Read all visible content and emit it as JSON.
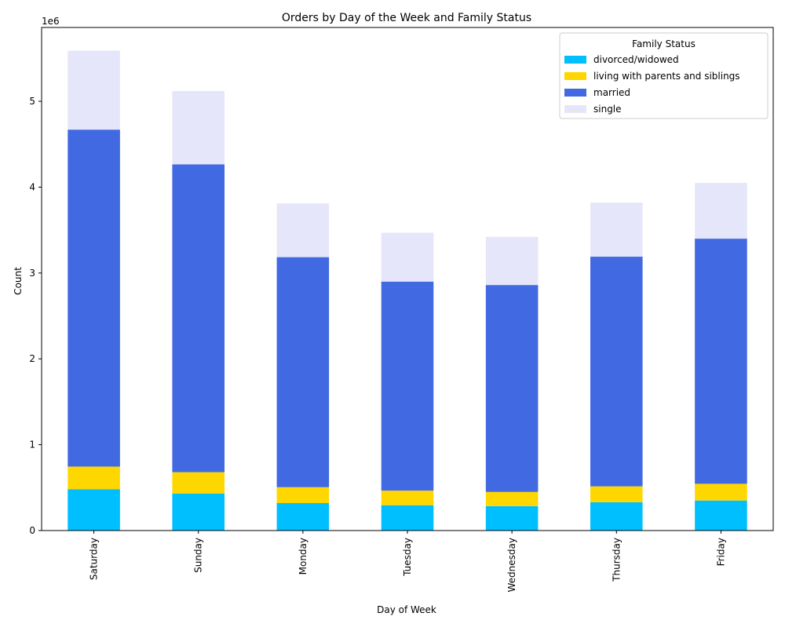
{
  "chart_data": {
    "type": "bar",
    "stacked": true,
    "title": "Orders by Day of the Week and Family Status",
    "xlabel": "Day of Week",
    "ylabel": "Count",
    "y_offset_label": "1e6",
    "y_scale": 1000000,
    "ylim": [
      0,
      5860000
    ],
    "yticks": [
      0,
      1000000,
      2000000,
      3000000,
      4000000,
      5000000
    ],
    "ytick_labels": [
      "0",
      "1",
      "2",
      "3",
      "4",
      "5"
    ],
    "grid": false,
    "legend_position": "top-right",
    "legend_title": "Family Status",
    "categories": [
      "Saturday",
      "Sunday",
      "Monday",
      "Tuesday",
      "Wednesday",
      "Thursday",
      "Friday"
    ],
    "series": [
      {
        "name": "divorced/widowed",
        "color": "#00bfff",
        "values": [
          480000,
          430000,
          320000,
          295000,
          285000,
          330000,
          350000
        ]
      },
      {
        "name": "living with parents and siblings",
        "color": "#ffd700",
        "values": [
          265000,
          250000,
          185000,
          170000,
          165000,
          185000,
          195000
        ]
      },
      {
        "name": "married",
        "color": "#4169e1",
        "values": [
          3925000,
          3585000,
          2680000,
          2435000,
          2410000,
          2675000,
          2855000
        ]
      },
      {
        "name": "single",
        "color": "#e6e6fa",
        "values": [
          920000,
          855000,
          625000,
          570000,
          560000,
          630000,
          650000
        ]
      }
    ]
  }
}
